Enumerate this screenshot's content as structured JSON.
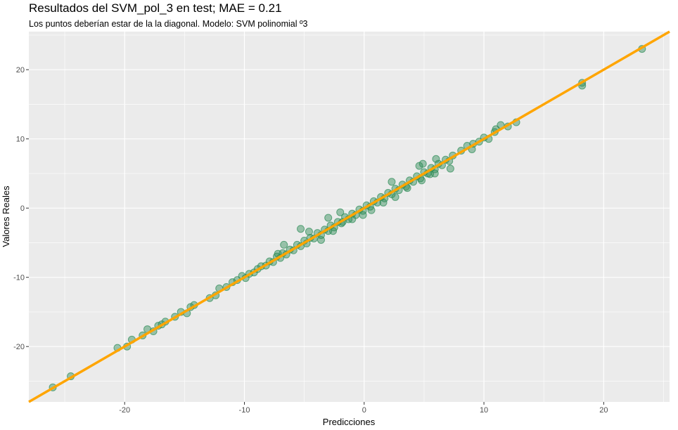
{
  "chart_data": {
    "type": "scatter",
    "title": "Resultados del SVM_pol_3 en test; MAE = 0.21",
    "subtitle": "Los puntos deberían estar de la la diagonal. Modelo: SVM polinomial º3",
    "xlabel": "Predicciones",
    "ylabel": "Valores Reales",
    "xlim": [
      -28,
      25.5
    ],
    "ylim": [
      -28,
      25.5
    ],
    "x_ticks": [
      -20,
      -10,
      0,
      10,
      20
    ],
    "y_ticks": [
      -20,
      -10,
      0,
      10,
      20
    ],
    "x_tick_labels": [
      "-20",
      "-10",
      "0",
      "10",
      "20"
    ],
    "y_tick_labels": [
      "-20",
      "-10",
      "0",
      "10",
      "20"
    ],
    "grid": true,
    "reference_line": {
      "slope": 1,
      "intercept": 0,
      "color": "#FFA500"
    },
    "point_color": "#2E8B57",
    "panel_color": "#EBEBEB",
    "points": [
      [
        -26.0,
        -25.9
      ],
      [
        -24.5,
        -24.3
      ],
      [
        -20.6,
        -20.2
      ],
      [
        -19.8,
        -20.0
      ],
      [
        -19.4,
        -19.0
      ],
      [
        -18.5,
        -18.4
      ],
      [
        -18.1,
        -17.5
      ],
      [
        -17.6,
        -17.8
      ],
      [
        -17.2,
        -17.0
      ],
      [
        -16.9,
        -16.8
      ],
      [
        -16.6,
        -16.4
      ],
      [
        -15.8,
        -15.7
      ],
      [
        -15.3,
        -15.0
      ],
      [
        -14.8,
        -15.2
      ],
      [
        -14.5,
        -14.3
      ],
      [
        -14.2,
        -14.0
      ],
      [
        -12.9,
        -13.0
      ],
      [
        -12.4,
        -12.6
      ],
      [
        -12.1,
        -11.6
      ],
      [
        -11.5,
        -11.4
      ],
      [
        -11.0,
        -10.7
      ],
      [
        -10.6,
        -10.4
      ],
      [
        -10.2,
        -9.8
      ],
      [
        -9.9,
        -10.1
      ],
      [
        -9.6,
        -9.5
      ],
      [
        -9.2,
        -9.3
      ],
      [
        -8.9,
        -8.8
      ],
      [
        -8.6,
        -8.4
      ],
      [
        -8.2,
        -8.3
      ],
      [
        -7.9,
        -7.7
      ],
      [
        -7.6,
        -7.8
      ],
      [
        -7.3,
        -7.0
      ],
      [
        -7.0,
        -7.2
      ],
      [
        -6.8,
        -6.5
      ],
      [
        -6.5,
        -6.7
      ],
      [
        -6.2,
        -6.0
      ],
      [
        -5.9,
        -6.1
      ],
      [
        -5.6,
        -5.3
      ],
      [
        -5.3,
        -5.5
      ],
      [
        -5.0,
        -4.7
      ],
      [
        -4.8,
        -5.1
      ],
      [
        -4.5,
        -4.3
      ],
      [
        -4.2,
        -4.4
      ],
      [
        -3.9,
        -3.6
      ],
      [
        -3.6,
        -3.9
      ],
      [
        -3.3,
        -3.1
      ],
      [
        -3.0,
        -3.3
      ],
      [
        -2.8,
        -2.5
      ],
      [
        -2.5,
        -2.8
      ],
      [
        -2.2,
        -2.0
      ],
      [
        -1.9,
        -2.2
      ],
      [
        -1.6,
        -1.3
      ],
      [
        -1.3,
        -1.6
      ],
      [
        -1.0,
        -0.8
      ],
      [
        -0.7,
        -1.0
      ],
      [
        -0.4,
        -0.2
      ],
      [
        -0.1,
        -0.4
      ],
      [
        0.2,
        0.4
      ],
      [
        0.5,
        0.2
      ],
      [
        0.8,
        1.0
      ],
      [
        1.1,
        0.8
      ],
      [
        1.4,
        1.6
      ],
      [
        1.7,
        1.4
      ],
      [
        2.0,
        2.2
      ],
      [
        2.3,
        2.0
      ],
      [
        2.6,
        2.8
      ],
      [
        2.9,
        2.6
      ],
      [
        3.2,
        3.4
      ],
      [
        3.5,
        3.1
      ],
      [
        3.8,
        4.0
      ],
      [
        4.1,
        3.8
      ],
      [
        4.4,
        4.6
      ],
      [
        4.7,
        4.3
      ],
      [
        5.0,
        5.2
      ],
      [
        5.3,
        5.0
      ],
      [
        5.6,
        5.8
      ],
      [
        5.9,
        5.6
      ],
      [
        6.2,
        6.4
      ],
      [
        6.5,
        6.2
      ],
      [
        6.8,
        7.0
      ],
      [
        7.1,
        6.8
      ],
      [
        7.4,
        7.6
      ],
      [
        7.2,
        5.7
      ],
      [
        4.8,
        4.0
      ],
      [
        4.9,
        6.4
      ],
      [
        4.6,
        6.1
      ],
      [
        2.3,
        3.8
      ],
      [
        0.6,
        -0.3
      ],
      [
        -0.1,
        -1.0
      ],
      [
        -1.8,
        -2.0
      ],
      [
        -2.0,
        -0.6
      ],
      [
        -3.0,
        -1.4
      ],
      [
        -4.6,
        -3.4
      ],
      [
        -5.3,
        -3.0
      ],
      [
        -6.7,
        -5.3
      ],
      [
        -7.2,
        -6.6
      ],
      [
        -3.6,
        -4.6
      ],
      [
        -2.6,
        -3.3
      ],
      [
        -1.0,
        -1.6
      ],
      [
        1.6,
        0.8
      ],
      [
        2.6,
        1.6
      ],
      [
        3.6,
        2.9
      ],
      [
        5.9,
        5.0
      ],
      [
        6.0,
        7.1
      ],
      [
        5.5,
        4.9
      ],
      [
        8.1,
        8.3
      ],
      [
        8.6,
        9.0
      ],
      [
        9.1,
        9.3
      ],
      [
        9.0,
        8.5
      ],
      [
        9.6,
        9.6
      ],
      [
        10.0,
        10.2
      ],
      [
        10.4,
        10.0
      ],
      [
        10.9,
        11.0
      ],
      [
        11.0,
        11.4
      ],
      [
        11.4,
        12.0
      ],
      [
        12.0,
        11.8
      ],
      [
        12.7,
        12.4
      ],
      [
        18.2,
        17.7
      ],
      [
        18.2,
        18.1
      ],
      [
        23.2,
        23.0
      ]
    ]
  }
}
